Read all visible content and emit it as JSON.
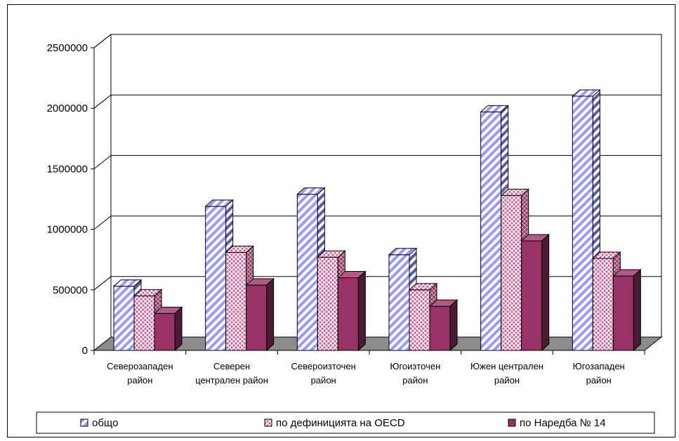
{
  "chart_data": {
    "type": "bar",
    "title": "",
    "xlabel": "",
    "ylabel": "",
    "ylim": [
      0,
      2500000
    ],
    "yticks": [
      0,
      500000,
      1000000,
      1500000,
      2000000,
      2500000
    ],
    "ytick_labels": [
      "0",
      "500000",
      "1000000",
      "1500000",
      "2000000",
      "2500000"
    ],
    "grid": true,
    "legend_position": "bottom",
    "categories": [
      [
        "Северозападен",
        "район"
      ],
      [
        "Северен",
        "централен район"
      ],
      [
        "Североизточен",
        "район"
      ],
      [
        "Югоизточен",
        "район"
      ],
      [
        "Южен централен",
        "район"
      ],
      [
        "Югозападен",
        "район"
      ]
    ],
    "series": [
      {
        "name": "общо",
        "values": [
          530000,
          1190000,
          1290000,
          790000,
          1970000,
          2100000
        ],
        "color": "#9999ff",
        "pattern": "diagonal-stripes"
      },
      {
        "name": "по дефиницията на OECD",
        "values": [
          450000,
          810000,
          770000,
          500000,
          1280000,
          760000
        ],
        "color": "#cc6699",
        "pattern": "crosshatch"
      },
      {
        "name": "по Наредба № 14",
        "values": [
          305000,
          540000,
          600000,
          365000,
          905000,
          615000
        ],
        "color": "#993366",
        "pattern": "solid"
      }
    ]
  }
}
